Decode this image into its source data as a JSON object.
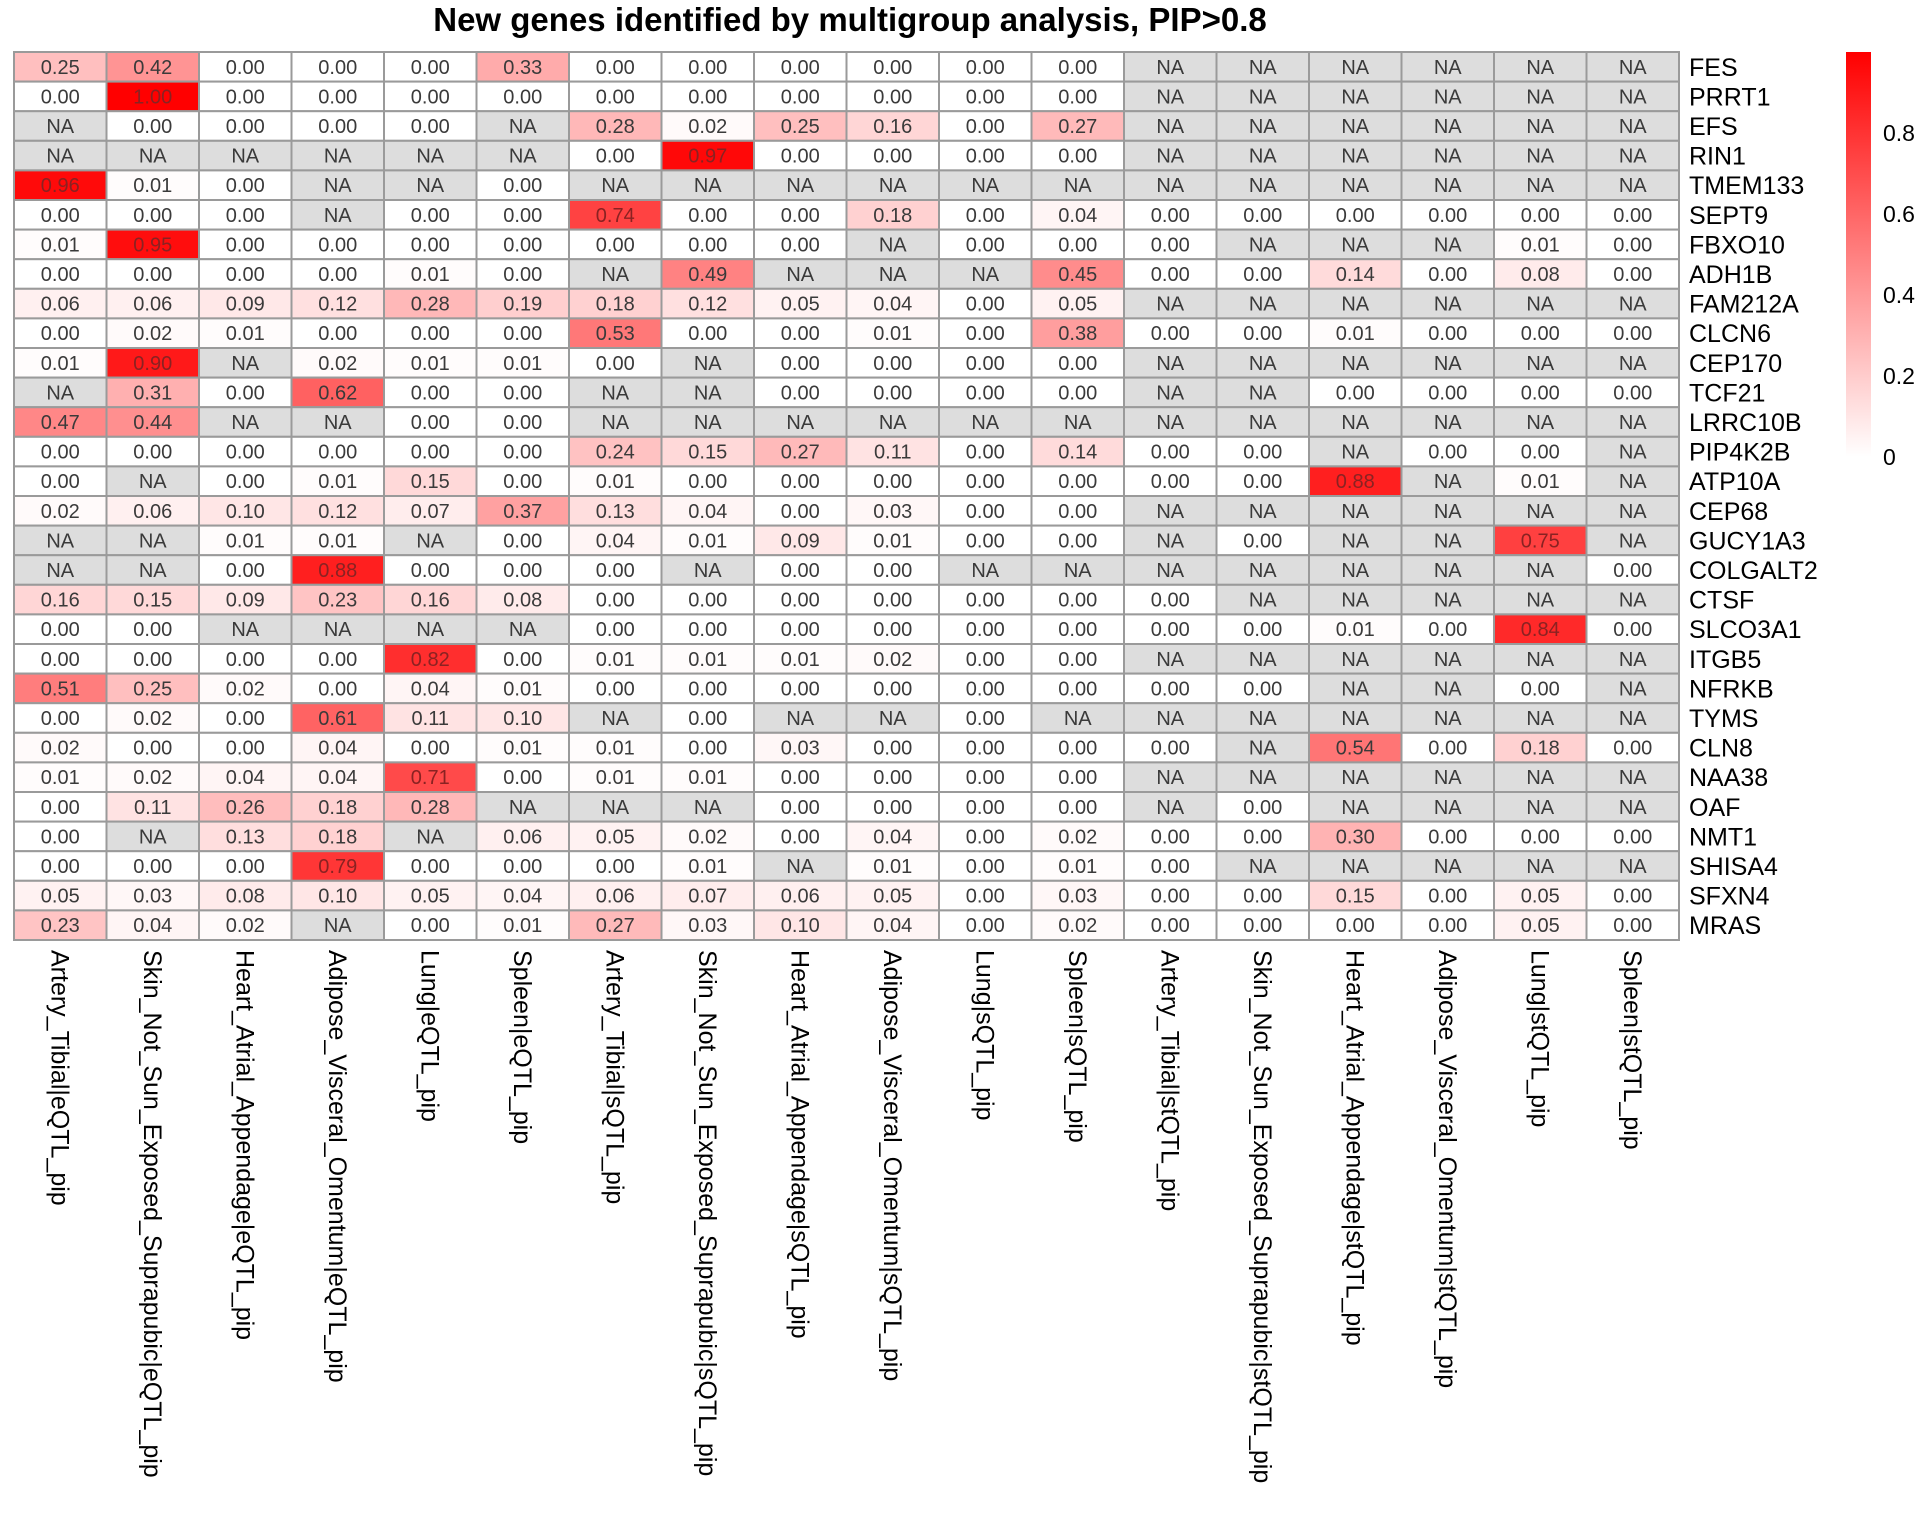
{
  "chart_data": {
    "type": "heatmap",
    "title": "New genes identified by multigroup analysis, PIP>0.8",
    "columns": [
      "Artery_Tibial|eQTL_pip",
      "Skin_Not_Sun_Exposed_Suprapubic|eQTL_pip",
      "Heart_Atrial_Appendage|eQTL_pip",
      "Adipose_Visceral_Omentum|eQTL_pip",
      "Lung|eQTL_pip",
      "Spleen|eQTL_pip",
      "Artery_Tibial|sQTL_pip",
      "Skin_Not_Sun_Exposed_Suprapubic|sQTL_pip",
      "Heart_Atrial_Appendage|sQTL_pip",
      "Adipose_Visceral_Omentum|sQTL_pip",
      "Lung|sQTL_pip",
      "Spleen|sQTL_pip",
      "Artery_Tibial|stQTL_pip",
      "Skin_Not_Sun_Exposed_Suprapubic|stQTL_pip",
      "Heart_Atrial_Appendage|stQTL_pip",
      "Adipose_Visceral_Omentum|stQTL_pip",
      "Lung|stQTL_pip",
      "Spleen|stQTL_pip"
    ],
    "rows": [
      "FES",
      "PRRT1",
      "EFS",
      "RIN1",
      "TMEM133",
      "SEPT9",
      "FBXO10",
      "ADH1B",
      "FAM212A",
      "CLCN6",
      "CEP170",
      "TCF21",
      "LRRC10B",
      "PIP4K2B",
      "ATP10A",
      "CEP68",
      "GUCY1A3",
      "COLGALT2",
      "CTSF",
      "SLCO3A1",
      "ITGB5",
      "NFRKB",
      "TYMS",
      "CLN8",
      "NAA38",
      "OAF",
      "NMT1",
      "SHISA4",
      "SFXN4",
      "MRAS"
    ],
    "values": [
      [
        "0.25",
        "0.42",
        "0.00",
        "0.00",
        "0.00",
        "0.33",
        "0.00",
        "0.00",
        "0.00",
        "0.00",
        "0.00",
        "0.00",
        "NA",
        "NA",
        "NA",
        "NA",
        "NA",
        "NA"
      ],
      [
        "0.00",
        "1.00",
        "0.00",
        "0.00",
        "0.00",
        "0.00",
        "0.00",
        "0.00",
        "0.00",
        "0.00",
        "0.00",
        "0.00",
        "NA",
        "NA",
        "NA",
        "NA",
        "NA",
        "NA"
      ],
      [
        "NA",
        "0.00",
        "0.00",
        "0.00",
        "0.00",
        "NA",
        "0.28",
        "0.02",
        "0.25",
        "0.16",
        "0.00",
        "0.27",
        "NA",
        "NA",
        "NA",
        "NA",
        "NA",
        "NA"
      ],
      [
        "NA",
        "NA",
        "NA",
        "NA",
        "NA",
        "NA",
        "0.00",
        "0.97",
        "0.00",
        "0.00",
        "0.00",
        "0.00",
        "NA",
        "NA",
        "NA",
        "NA",
        "NA",
        "NA"
      ],
      [
        "0.96",
        "0.01",
        "0.00",
        "NA",
        "NA",
        "0.00",
        "NA",
        "NA",
        "NA",
        "NA",
        "NA",
        "NA",
        "NA",
        "NA",
        "NA",
        "NA",
        "NA",
        "NA"
      ],
      [
        "0.00",
        "0.00",
        "0.00",
        "NA",
        "0.00",
        "0.00",
        "0.74",
        "0.00",
        "0.00",
        "0.18",
        "0.00",
        "0.04",
        "0.00",
        "0.00",
        "0.00",
        "0.00",
        "0.00",
        "0.00"
      ],
      [
        "0.01",
        "0.95",
        "0.00",
        "0.00",
        "0.00",
        "0.00",
        "0.00",
        "0.00",
        "0.00",
        "NA",
        "0.00",
        "0.00",
        "0.00",
        "NA",
        "NA",
        "NA",
        "0.01",
        "0.00"
      ],
      [
        "0.00",
        "0.00",
        "0.00",
        "0.00",
        "0.01",
        "0.00",
        "NA",
        "0.49",
        "NA",
        "NA",
        "NA",
        "0.45",
        "0.00",
        "0.00",
        "0.14",
        "0.00",
        "0.08",
        "0.00"
      ],
      [
        "0.06",
        "0.06",
        "0.09",
        "0.12",
        "0.28",
        "0.19",
        "0.18",
        "0.12",
        "0.05",
        "0.04",
        "0.00",
        "0.05",
        "NA",
        "NA",
        "NA",
        "NA",
        "NA",
        "NA"
      ],
      [
        "0.00",
        "0.02",
        "0.01",
        "0.00",
        "0.00",
        "0.00",
        "0.53",
        "0.00",
        "0.00",
        "0.01",
        "0.00",
        "0.38",
        "0.00",
        "0.00",
        "0.01",
        "0.00",
        "0.00",
        "0.00"
      ],
      [
        "0.01",
        "0.90",
        "NA",
        "0.02",
        "0.01",
        "0.01",
        "0.00",
        "NA",
        "0.00",
        "0.00",
        "0.00",
        "0.00",
        "NA",
        "NA",
        "NA",
        "NA",
        "NA",
        "NA"
      ],
      [
        "NA",
        "0.31",
        "0.00",
        "0.62",
        "0.00",
        "0.00",
        "NA",
        "NA",
        "0.00",
        "0.00",
        "0.00",
        "0.00",
        "NA",
        "NA",
        "0.00",
        "0.00",
        "0.00",
        "0.00"
      ],
      [
        "0.47",
        "0.44",
        "NA",
        "NA",
        "0.00",
        "0.00",
        "NA",
        "NA",
        "NA",
        "NA",
        "NA",
        "NA",
        "NA",
        "NA",
        "NA",
        "NA",
        "NA",
        "NA"
      ],
      [
        "0.00",
        "0.00",
        "0.00",
        "0.00",
        "0.00",
        "0.00",
        "0.24",
        "0.15",
        "0.27",
        "0.11",
        "0.00",
        "0.14",
        "0.00",
        "0.00",
        "NA",
        "0.00",
        "0.00",
        "NA"
      ],
      [
        "0.00",
        "NA",
        "0.00",
        "0.01",
        "0.15",
        "0.00",
        "0.01",
        "0.00",
        "0.00",
        "0.00",
        "0.00",
        "0.00",
        "0.00",
        "0.00",
        "0.88",
        "NA",
        "0.01",
        "NA"
      ],
      [
        "0.02",
        "0.06",
        "0.10",
        "0.12",
        "0.07",
        "0.37",
        "0.13",
        "0.04",
        "0.00",
        "0.03",
        "0.00",
        "0.00",
        "NA",
        "NA",
        "NA",
        "NA",
        "NA",
        "NA"
      ],
      [
        "NA",
        "NA",
        "0.01",
        "0.01",
        "NA",
        "0.00",
        "0.04",
        "0.01",
        "0.09",
        "0.01",
        "0.00",
        "0.00",
        "NA",
        "0.00",
        "NA",
        "NA",
        "0.75",
        "NA"
      ],
      [
        "NA",
        "NA",
        "0.00",
        "0.88",
        "0.00",
        "0.00",
        "0.00",
        "NA",
        "0.00",
        "0.00",
        "NA",
        "NA",
        "NA",
        "NA",
        "NA",
        "NA",
        "NA",
        "0.00"
      ],
      [
        "0.16",
        "0.15",
        "0.09",
        "0.23",
        "0.16",
        "0.08",
        "0.00",
        "0.00",
        "0.00",
        "0.00",
        "0.00",
        "0.00",
        "0.00",
        "NA",
        "NA",
        "NA",
        "NA",
        "NA"
      ],
      [
        "0.00",
        "0.00",
        "NA",
        "NA",
        "NA",
        "NA",
        "0.00",
        "0.00",
        "0.00",
        "0.00",
        "0.00",
        "0.00",
        "0.00",
        "0.00",
        "0.01",
        "0.00",
        "0.84",
        "0.00"
      ],
      [
        "0.00",
        "0.00",
        "0.00",
        "0.00",
        "0.82",
        "0.00",
        "0.01",
        "0.01",
        "0.01",
        "0.02",
        "0.00",
        "0.00",
        "NA",
        "NA",
        "NA",
        "NA",
        "NA",
        "NA"
      ],
      [
        "0.51",
        "0.25",
        "0.02",
        "0.00",
        "0.04",
        "0.01",
        "0.00",
        "0.00",
        "0.00",
        "0.00",
        "0.00",
        "0.00",
        "0.00",
        "0.00",
        "NA",
        "NA",
        "0.00",
        "NA"
      ],
      [
        "0.00",
        "0.02",
        "0.00",
        "0.61",
        "0.11",
        "0.10",
        "NA",
        "0.00",
        "NA",
        "NA",
        "0.00",
        "NA",
        "NA",
        "NA",
        "NA",
        "NA",
        "NA",
        "NA"
      ],
      [
        "0.02",
        "0.00",
        "0.00",
        "0.04",
        "0.00",
        "0.01",
        "0.01",
        "0.00",
        "0.03",
        "0.00",
        "0.00",
        "0.00",
        "0.00",
        "NA",
        "0.54",
        "0.00",
        "0.18",
        "0.00"
      ],
      [
        "0.01",
        "0.02",
        "0.04",
        "0.04",
        "0.71",
        "0.00",
        "0.01",
        "0.01",
        "0.00",
        "0.00",
        "0.00",
        "0.00",
        "NA",
        "NA",
        "NA",
        "NA",
        "NA",
        "NA"
      ],
      [
        "0.00",
        "0.11",
        "0.26",
        "0.18",
        "0.28",
        "NA",
        "NA",
        "NA",
        "0.00",
        "0.00",
        "0.00",
        "0.00",
        "NA",
        "0.00",
        "NA",
        "NA",
        "NA",
        "NA"
      ],
      [
        "0.00",
        "NA",
        "0.13",
        "0.18",
        "NA",
        "0.06",
        "0.05",
        "0.02",
        "0.00",
        "0.04",
        "0.00",
        "0.02",
        "0.00",
        "0.00",
        "0.30",
        "0.00",
        "0.00",
        "0.00"
      ],
      [
        "0.00",
        "0.00",
        "0.00",
        "0.79",
        "0.00",
        "0.00",
        "0.00",
        "0.01",
        "NA",
        "0.01",
        "0.00",
        "0.01",
        "0.00",
        "NA",
        "NA",
        "NA",
        "NA",
        "NA"
      ],
      [
        "0.05",
        "0.03",
        "0.08",
        "0.10",
        "0.05",
        "0.04",
        "0.06",
        "0.07",
        "0.06",
        "0.05",
        "0.00",
        "0.03",
        "0.00",
        "0.00",
        "0.15",
        "0.00",
        "0.05",
        "0.00"
      ],
      [
        "0.23",
        "0.04",
        "0.02",
        "NA",
        "0.00",
        "0.01",
        "0.27",
        "0.03",
        "0.10",
        "0.04",
        "0.00",
        "0.02",
        "0.00",
        "0.00",
        "0.00",
        "0.00",
        "0.05",
        "0.00"
      ]
    ],
    "color_scale": {
      "low": "#ffffff",
      "high": "#ff0000",
      "na": "#dddddd",
      "range": [
        0,
        1
      ]
    },
    "legend_ticks": [
      "0",
      "0.2",
      "0.4",
      "0.6",
      "0.8"
    ]
  }
}
